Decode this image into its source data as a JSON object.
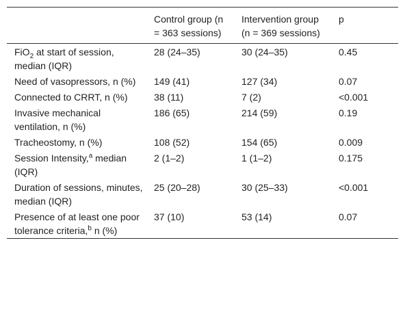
{
  "table": {
    "header": [
      "Control group (n = 363 sessions)",
      "Intervention group (n = 369 sessions)",
      "p"
    ],
    "rows": [
      [
        {
          "text": "FiO",
          "sub": "2",
          "rest": " at start of session, median (IQR)"
        },
        "28 (24–35)",
        "30 (24–35)",
        "0.45"
      ],
      [
        "Need of vasopressors, n (%)",
        "149 (41)",
        "127 (34)",
        "0.07"
      ],
      [
        "Connected to CRRT, n (%)",
        "38 (11)",
        "7 (2)",
        "<0.001"
      ],
      [
        "Invasive mechanical ventilation, n (%)",
        "186 (65)",
        "214 (59)",
        "0.19"
      ],
      [
        "Tracheostomy, n (%)",
        "108 (52)",
        "154 (65)",
        "0.009"
      ],
      [
        {
          "text": "Session Intensity,",
          "sup": "a",
          "rest": " median (IQR)"
        },
        "2 (1–2)",
        "1 (1–2)",
        "0.175"
      ],
      [
        "Duration of sessions, minutes, median (IQR)",
        "25 (20–28)",
        "30 (25–33)",
        "<0.001"
      ],
      [
        {
          "text": "Presence of at least one poor tolerance criteria,",
          "sup": "b",
          "rest": " n (%)"
        },
        "37 (10)",
        "53 (14)",
        "0.07"
      ]
    ]
  }
}
